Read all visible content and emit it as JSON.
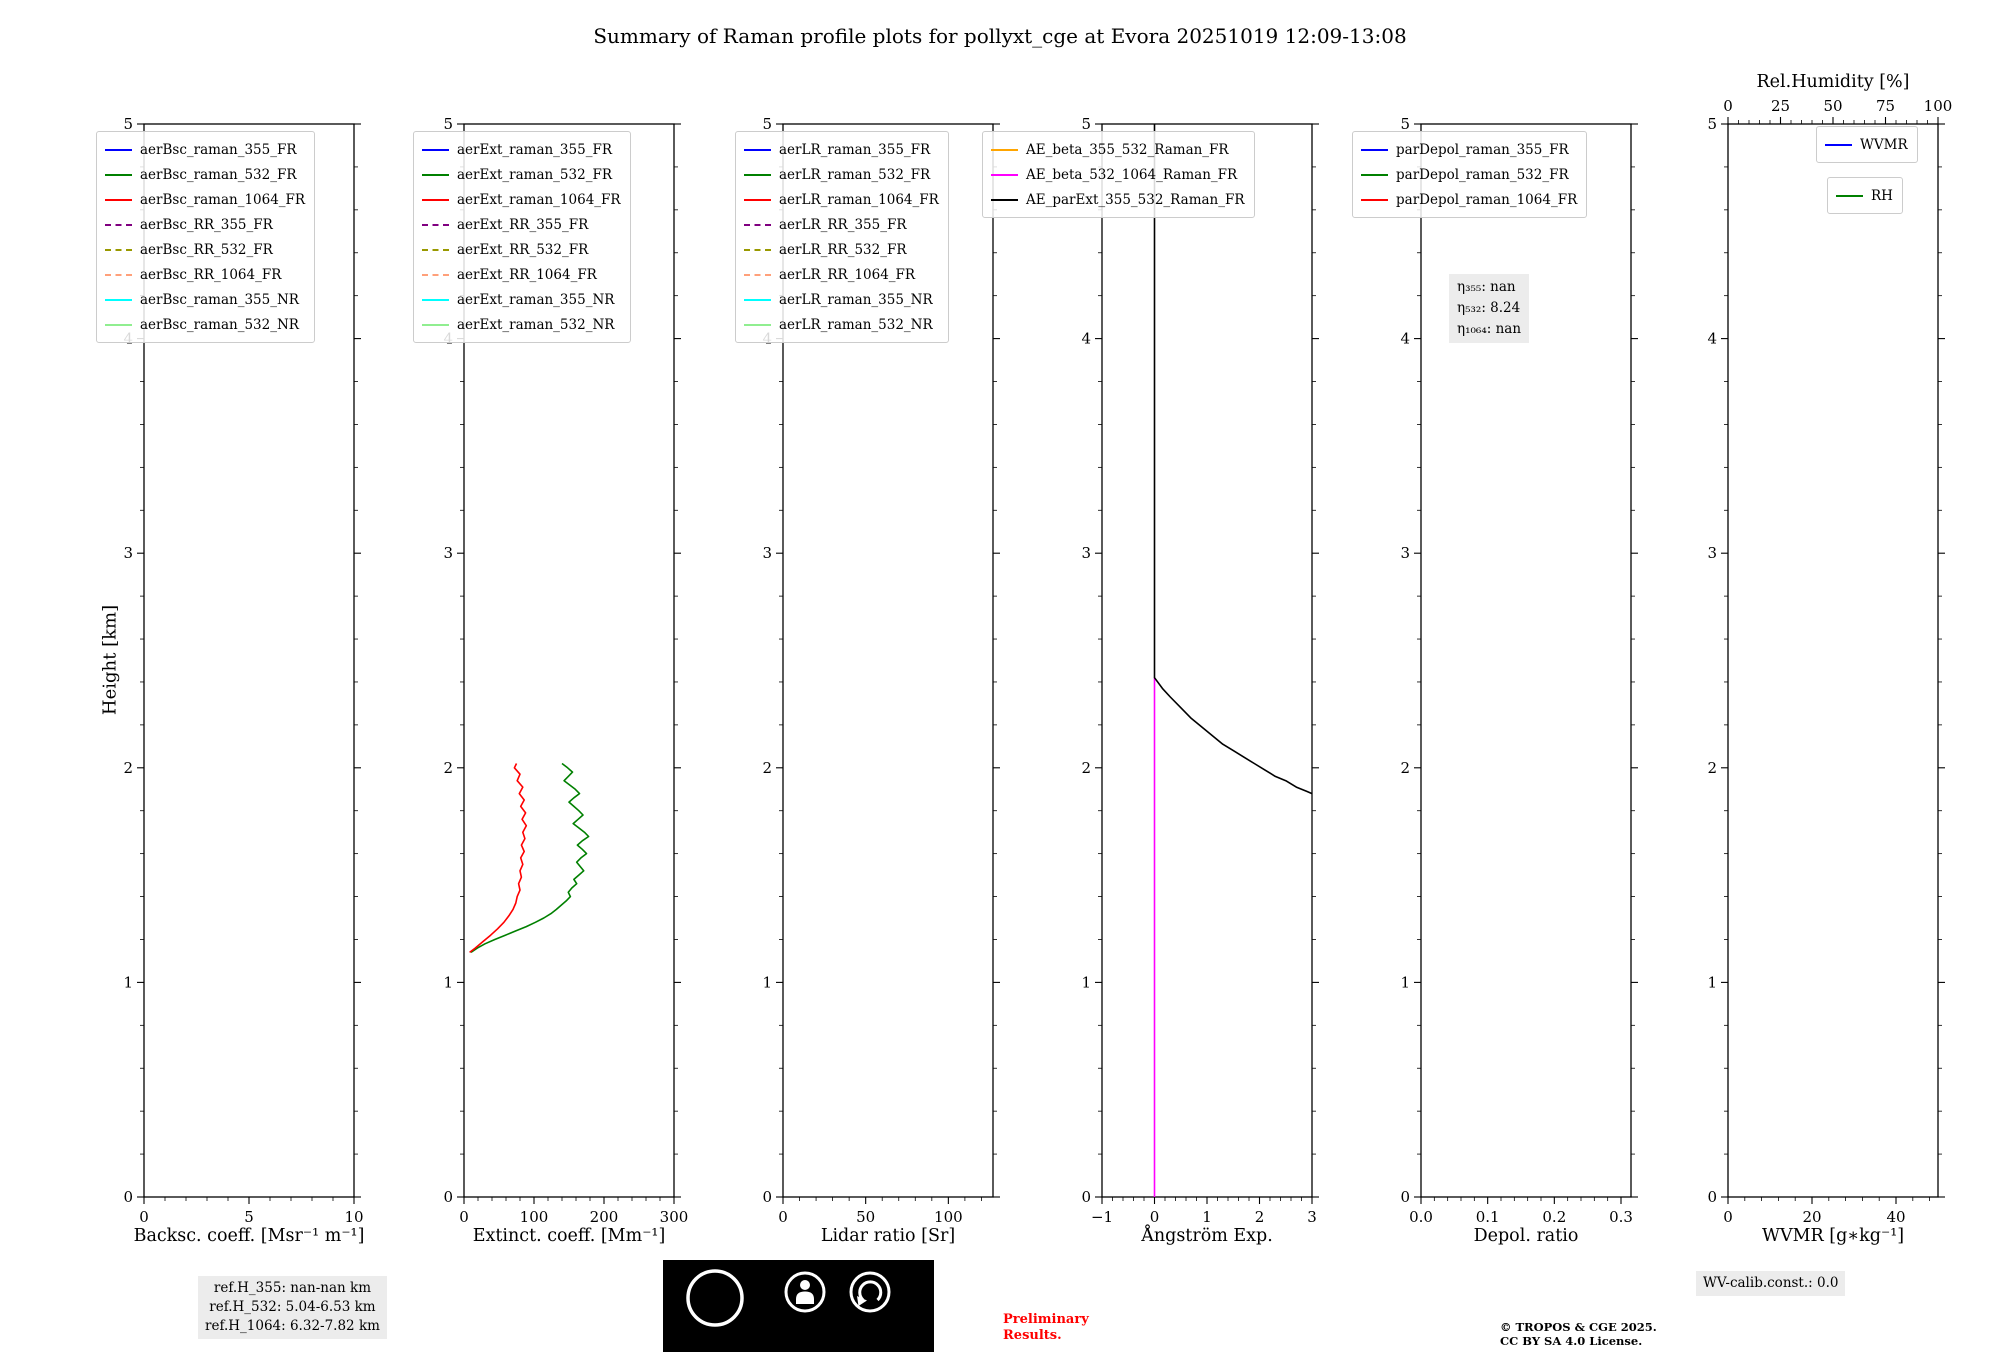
{
  "title": "Summary of Raman profile plots for pollyxt_cge at Evora 20251019 12:09-13:08",
  "ylabel": "Height [km]",
  "chart_data": [
    {
      "id": "backscatter",
      "type": "line",
      "xlabel": "Backsc. coeff. [Msr⁻¹ m⁻¹]",
      "xlim": [
        0,
        10
      ],
      "ylim": [
        0,
        5
      ],
      "xticks": [
        0,
        5,
        10
      ],
      "xtick_labels": [
        "0",
        "5",
        "10"
      ],
      "yticks": [
        0,
        1,
        2,
        3,
        4,
        5
      ],
      "legends": [
        [
          {
            "label": "aerBsc_raman_355_FR",
            "color": "#0000ff",
            "dash": false
          },
          {
            "label": "aerBsc_raman_532_FR",
            "color": "#008000",
            "dash": false
          },
          {
            "label": "aerBsc_raman_1064_FR",
            "color": "#ff0000",
            "dash": false
          },
          {
            "label": "aerBsc_RR_355_FR",
            "color": "#800080",
            "dash": true
          },
          {
            "label": "aerBsc_RR_532_FR",
            "color": "#999900",
            "dash": true
          },
          {
            "label": "aerBsc_RR_1064_FR",
            "color": "#ffa07a",
            "dash": true
          },
          {
            "label": "aerBsc_raman_355_NR",
            "color": "#00ffff",
            "dash": false
          },
          {
            "label": "aerBsc_raman_532_NR",
            "color": "#90ee90",
            "dash": false
          }
        ]
      ],
      "series": []
    },
    {
      "id": "extinction",
      "type": "line",
      "xlabel": "Extinct. coeff. [Mm⁻¹]",
      "xlim": [
        0,
        300
      ],
      "ylim": [
        0,
        5
      ],
      "xticks": [
        0,
        100,
        200,
        300
      ],
      "xtick_labels": [
        "0",
        "100",
        "200",
        "300"
      ],
      "yticks": [
        0,
        1,
        2,
        3,
        4,
        5
      ],
      "legends": [
        [
          {
            "label": "aerExt_raman_355_FR",
            "color": "#0000ff",
            "dash": false
          },
          {
            "label": "aerExt_raman_532_FR",
            "color": "#008000",
            "dash": false
          },
          {
            "label": "aerExt_raman_1064_FR",
            "color": "#ff0000",
            "dash": false
          },
          {
            "label": "aerExt_RR_355_FR",
            "color": "#800080",
            "dash": true
          },
          {
            "label": "aerExt_RR_532_FR",
            "color": "#999900",
            "dash": true
          },
          {
            "label": "aerExt_RR_1064_FR",
            "color": "#ffa07a",
            "dash": true
          },
          {
            "label": "aerExt_raman_355_NR",
            "color": "#00ffff",
            "dash": false
          },
          {
            "label": "aerExt_raman_532_NR",
            "color": "#90ee90",
            "dash": false
          }
        ]
      ],
      "series": [
        {
          "name": "aerExt_raman_532_FR",
          "color": "#008000",
          "points": [
            [
              140,
              2.02
            ],
            [
              148,
              2.0
            ],
            [
              155,
              1.98
            ],
            [
              149,
              1.96
            ],
            [
              143,
              1.94
            ],
            [
              151,
              1.92
            ],
            [
              159,
              1.9
            ],
            [
              165,
              1.88
            ],
            [
              157,
              1.86
            ],
            [
              150,
              1.84
            ],
            [
              157,
              1.82
            ],
            [
              164,
              1.8
            ],
            [
              170,
              1.78
            ],
            [
              163,
              1.76
            ],
            [
              156,
              1.74
            ],
            [
              164,
              1.72
            ],
            [
              172,
              1.7
            ],
            [
              178,
              1.68
            ],
            [
              169,
              1.66
            ],
            [
              162,
              1.64
            ],
            [
              169,
              1.62
            ],
            [
              175,
              1.6
            ],
            [
              167,
              1.58
            ],
            [
              161,
              1.56
            ],
            [
              166,
              1.54
            ],
            [
              171,
              1.52
            ],
            [
              164,
              1.5
            ],
            [
              157,
              1.48
            ],
            [
              161,
              1.46
            ],
            [
              154,
              1.44
            ],
            [
              149,
              1.42
            ],
            [
              152,
              1.4
            ],
            [
              146,
              1.38
            ],
            [
              139,
              1.36
            ],
            [
              132,
              1.34
            ],
            [
              124,
              1.32
            ],
            [
              114,
              1.3
            ],
            [
              102,
              1.28
            ],
            [
              89,
              1.26
            ],
            [
              74,
              1.24
            ],
            [
              59,
              1.22
            ],
            [
              44,
              1.2
            ],
            [
              30,
              1.18
            ],
            [
              19,
              1.16
            ],
            [
              10,
              1.14
            ]
          ]
        },
        {
          "name": "aerExt_raman_1064_FR",
          "color": "#ff0000",
          "points": [
            [
              75,
              2.02
            ],
            [
              72,
              2.0
            ],
            [
              80,
              1.97
            ],
            [
              76,
              1.94
            ],
            [
              84,
              1.91
            ],
            [
              79,
              1.88
            ],
            [
              86,
              1.85
            ],
            [
              81,
              1.82
            ],
            [
              88,
              1.79
            ],
            [
              83,
              1.76
            ],
            [
              89,
              1.73
            ],
            [
              84,
              1.7
            ],
            [
              87,
              1.67
            ],
            [
              82,
              1.64
            ],
            [
              86,
              1.61
            ],
            [
              81,
              1.58
            ],
            [
              84,
              1.55
            ],
            [
              80,
              1.52
            ],
            [
              82,
              1.49
            ],
            [
              78,
              1.46
            ],
            [
              80,
              1.43
            ],
            [
              76,
              1.4
            ],
            [
              74,
              1.37
            ],
            [
              70,
              1.34
            ],
            [
              64,
              1.31
            ],
            [
              57,
              1.28
            ],
            [
              48,
              1.25
            ],
            [
              38,
              1.22
            ],
            [
              27,
              1.19
            ],
            [
              16,
              1.16
            ],
            [
              8,
              1.14
            ]
          ]
        }
      ]
    },
    {
      "id": "lidar-ratio",
      "type": "line",
      "xlabel": "Lidar ratio [Sr]",
      "xlim": [
        0,
        127
      ],
      "ylim": [
        0,
        5
      ],
      "xticks": [
        0,
        50,
        100
      ],
      "xtick_labels": [
        "0",
        "50",
        "100"
      ],
      "yticks": [
        0,
        1,
        2,
        3,
        4,
        5
      ],
      "legends": [
        [
          {
            "label": "aerLR_raman_355_FR",
            "color": "#0000ff",
            "dash": false
          },
          {
            "label": "aerLR_raman_532_FR",
            "color": "#008000",
            "dash": false
          },
          {
            "label": "aerLR_raman_1064_FR",
            "color": "#ff0000",
            "dash": false
          },
          {
            "label": "aerLR_RR_355_FR",
            "color": "#800080",
            "dash": true
          },
          {
            "label": "aerLR_RR_532_FR",
            "color": "#999900",
            "dash": true
          },
          {
            "label": "aerLR_RR_1064_FR",
            "color": "#ffa07a",
            "dash": true
          },
          {
            "label": "aerLR_raman_355_NR",
            "color": "#00ffff",
            "dash": false
          },
          {
            "label": "aerLR_raman_532_NR",
            "color": "#90ee90",
            "dash": false
          }
        ]
      ],
      "series": []
    },
    {
      "id": "angstrom",
      "type": "line",
      "xlabel": "Ångström Exp.",
      "xlim": [
        -1,
        3
      ],
      "ylim": [
        0,
        5
      ],
      "xticks": [
        -1,
        0,
        1,
        2,
        3
      ],
      "xtick_labels": [
        "−1",
        "0",
        "1",
        "2",
        "3"
      ],
      "yticks": [
        0,
        1,
        2,
        3,
        4,
        5
      ],
      "legends": [
        [
          {
            "label": "AE_beta_355_532_Raman_FR",
            "color": "#ffa500",
            "dash": false
          },
          {
            "label": "AE_beta_532_1064_Raman_FR",
            "color": "#ff00ff",
            "dash": false
          },
          {
            "label": "AE_parExt_355_532_Raman_FR",
            "color": "#000000",
            "dash": false
          }
        ]
      ],
      "series": [
        {
          "name": "AE_beta_532_1064_Raman_FR",
          "color": "#ff00ff",
          "points": [
            [
              0,
              0
            ],
            [
              0,
              2.42
            ]
          ]
        },
        {
          "name": "AE_parExt_355_532_Raman_FR",
          "color": "#000000",
          "points": [
            [
              0,
              5
            ],
            [
              0,
              2.42
            ],
            [
              0.15,
              2.37
            ],
            [
              0.3,
              2.33
            ],
            [
              0.5,
              2.28
            ],
            [
              0.7,
              2.23
            ],
            [
              0.9,
              2.19
            ],
            [
              1.1,
              2.15
            ],
            [
              1.3,
              2.11
            ],
            [
              1.5,
              2.08
            ],
            [
              1.7,
              2.05
            ],
            [
              1.9,
              2.02
            ],
            [
              2.1,
              1.99
            ],
            [
              2.3,
              1.96
            ],
            [
              2.5,
              1.94
            ],
            [
              2.7,
              1.91
            ],
            [
              2.9,
              1.89
            ],
            [
              3.0,
              1.88
            ]
          ]
        }
      ]
    },
    {
      "id": "depol",
      "type": "line",
      "xlabel": "Depol. ratio",
      "xlim": [
        0,
        0.315
      ],
      "ylim": [
        0,
        5
      ],
      "xticks": [
        0,
        0.1,
        0.2,
        0.3
      ],
      "xtick_labels": [
        "0.0",
        "0.1",
        "0.2",
        "0.3"
      ],
      "yticks": [
        0,
        1,
        2,
        3,
        4,
        5
      ],
      "legends": [
        [
          {
            "label": "parDepol_raman_355_FR",
            "color": "#0000ff",
            "dash": false
          },
          {
            "label": "parDepol_raman_532_FR",
            "color": "#008000",
            "dash": false
          },
          {
            "label": "parDepol_raman_1064_FR",
            "color": "#ff0000",
            "dash": false
          }
        ]
      ],
      "annotation": [
        "η₃₅₅: nan",
        "η₅₃₂: 8.24",
        "η₁₀₆₄: nan"
      ],
      "series": []
    },
    {
      "id": "wvmr",
      "type": "line",
      "xlabel": "WVMR [g∗kg⁻¹]",
      "xlim": [
        0,
        50
      ],
      "ylim": [
        0,
        5
      ],
      "xticks": [
        0,
        20,
        40
      ],
      "xtick_labels": [
        "0",
        "20",
        "40"
      ],
      "yticks": [
        0,
        1,
        2,
        3,
        4,
        5
      ],
      "top_axis": {
        "label": "Rel.Humidity [%]",
        "xlim": [
          0,
          100
        ],
        "xticks": [
          0,
          25,
          50,
          75,
          100
        ]
      },
      "legends": [
        [
          {
            "label": "WVMR",
            "color": "#0000ff",
            "dash": false
          }
        ],
        [
          {
            "label": "RH",
            "color": "#008000",
            "dash": false
          }
        ]
      ],
      "series": []
    }
  ],
  "footer": {
    "ref_lines": [
      "ref.H_355: nan-nan km",
      "ref.H_532: 5.04-6.53 km",
      "ref.H_1064: 6.32-7.82 km"
    ],
    "preliminary": [
      "Preliminary",
      "Results."
    ],
    "copyright": [
      "© TROPOS & CGE 2025.",
      "CC BY SA 4.0 License."
    ],
    "wv_calib": "WV-calib.const.: 0.0",
    "cc_badge": {
      "cc": "CC",
      "by": "BY",
      "sa": "SA"
    }
  }
}
